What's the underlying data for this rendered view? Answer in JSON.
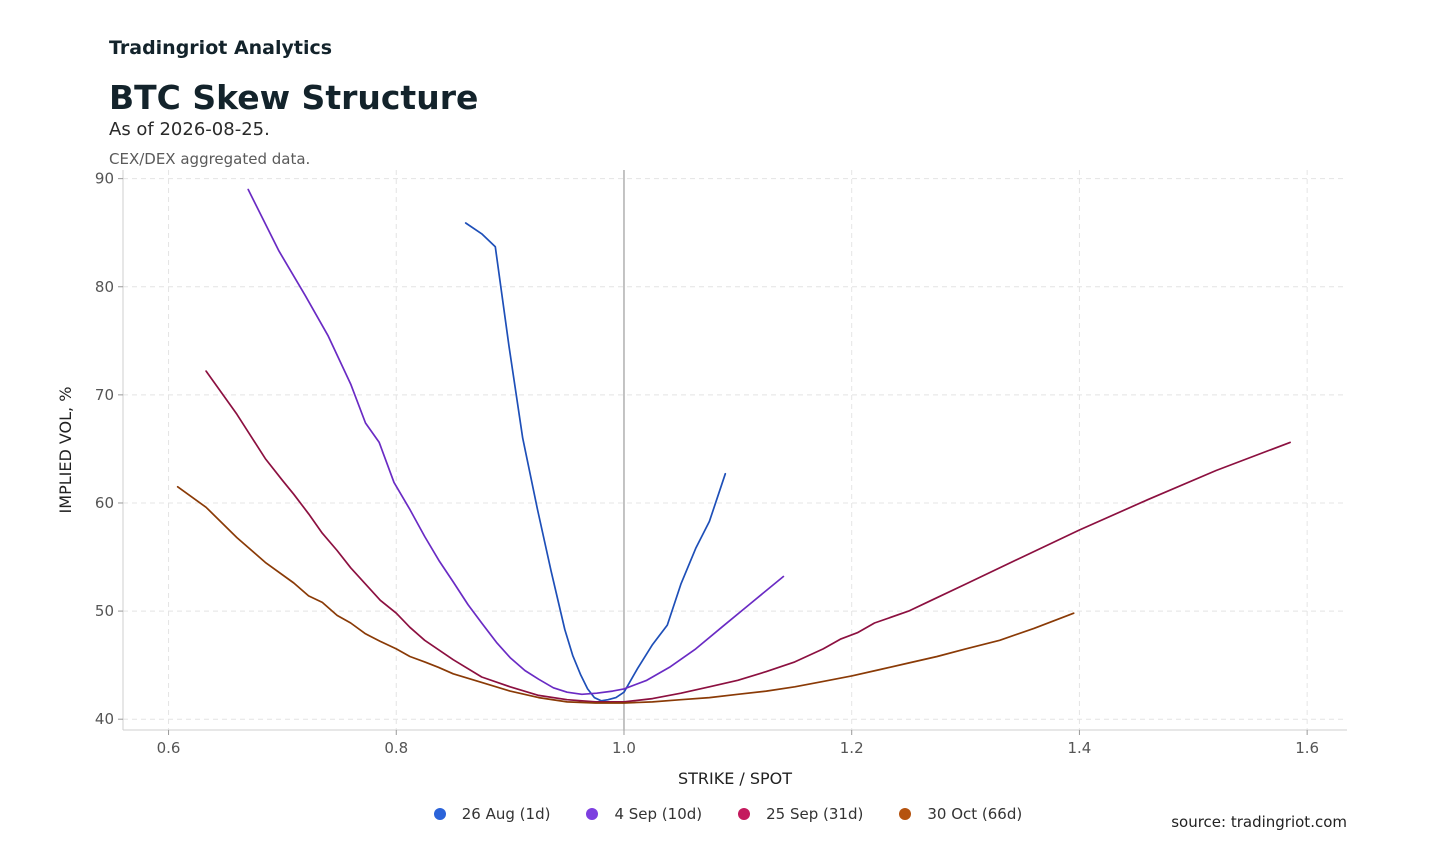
{
  "header": {
    "brand": "Tradingriot Analytics",
    "title": "BTC Skew Structure",
    "subtitle": "As of 2026-08-25.",
    "note": "CEX/DEX aggregated data."
  },
  "footer": {
    "source": "source: tradingriot.com"
  },
  "chart_data": {
    "type": "line",
    "title": "BTC Skew Structure",
    "xlabel": "STRIKE / SPOT",
    "ylabel": "IMPLIED VOL, %",
    "xlim": [
      0.56,
      1.635
    ],
    "ylim": [
      39,
      90.8
    ],
    "xticks": [
      0.6,
      0.8,
      1.0,
      1.2,
      1.4,
      1.6
    ],
    "xtick_labels": [
      "0.6",
      "0.8",
      "1.0",
      "1.2",
      "1.4",
      "1.6"
    ],
    "yticks": [
      40,
      50,
      60,
      70,
      80,
      90
    ],
    "ytick_labels": [
      "40",
      "50",
      "60",
      "70",
      "80",
      "90"
    ],
    "grid": true,
    "vline_x": 1.0,
    "legend_position": "bottom-center",
    "series": [
      {
        "name": "26 Aug (1d)",
        "color": "#1e4fb8",
        "legend_color": "#2b63d9",
        "x": [
          0.861,
          0.875,
          0.887,
          0.899,
          0.911,
          0.924,
          0.936,
          0.948,
          0.955,
          0.962,
          0.968,
          0.974,
          0.98,
          0.986,
          0.993,
          1.0,
          1.012,
          1.025,
          1.038,
          1.05,
          1.063,
          1.075,
          1.089
        ],
        "y": [
          85.9,
          84.9,
          83.7,
          74.5,
          66.0,
          59.4,
          53.7,
          48.3,
          45.9,
          44.1,
          42.8,
          42.0,
          41.7,
          41.8,
          42.0,
          42.5,
          44.7,
          46.9,
          48.7,
          52.5,
          55.8,
          58.3,
          62.7
        ]
      },
      {
        "name": "4 Sep (10d)",
        "color": "#6a2bc4",
        "legend_color": "#7d3fe0",
        "x": [
          0.67,
          0.697,
          0.72,
          0.74,
          0.76,
          0.773,
          0.785,
          0.798,
          0.812,
          0.825,
          0.838,
          0.85,
          0.863,
          0.875,
          0.888,
          0.9,
          0.913,
          0.925,
          0.938,
          0.95,
          0.963,
          0.976,
          0.99,
          1.0,
          1.02,
          1.04,
          1.063,
          1.087,
          1.11,
          1.14
        ],
        "y": [
          89.0,
          83.3,
          79.2,
          75.5,
          71.0,
          67.4,
          65.6,
          61.9,
          59.4,
          56.9,
          54.6,
          52.7,
          50.6,
          48.9,
          47.1,
          45.7,
          44.5,
          43.7,
          42.9,
          42.5,
          42.3,
          42.4,
          42.6,
          42.8,
          43.6,
          44.8,
          46.5,
          48.6,
          50.6,
          53.2
        ]
      },
      {
        "name": "25 Sep (31d)",
        "color": "#8c1040",
        "legend_color": "#c41a5e",
        "x": [
          0.633,
          0.66,
          0.685,
          0.7,
          0.71,
          0.723,
          0.735,
          0.748,
          0.76,
          0.773,
          0.786,
          0.8,
          0.812,
          0.825,
          0.85,
          0.875,
          0.9,
          0.925,
          0.95,
          0.975,
          1.0,
          1.025,
          1.05,
          1.075,
          1.1,
          1.125,
          1.15,
          1.175,
          1.19,
          1.205,
          1.22,
          1.25,
          1.27,
          1.3,
          1.35,
          1.4,
          1.46,
          1.52,
          1.585
        ],
        "y": [
          72.2,
          68.2,
          64.1,
          62.1,
          60.8,
          59.0,
          57.2,
          55.6,
          54.0,
          52.5,
          51.0,
          49.8,
          48.5,
          47.3,
          45.5,
          43.9,
          43.0,
          42.2,
          41.8,
          41.6,
          41.6,
          41.9,
          42.4,
          43.0,
          43.6,
          44.4,
          45.3,
          46.5,
          47.4,
          48.0,
          48.9,
          50.0,
          51.0,
          52.5,
          55.0,
          57.5,
          60.3,
          63.0,
          65.6
        ]
      },
      {
        "name": "30 Oct (66d)",
        "color": "#8a3a06",
        "legend_color": "#b5530f",
        "x": [
          0.608,
          0.633,
          0.66,
          0.685,
          0.71,
          0.723,
          0.735,
          0.748,
          0.76,
          0.773,
          0.786,
          0.8,
          0.812,
          0.825,
          0.837,
          0.85,
          0.875,
          0.9,
          0.925,
          0.95,
          0.975,
          1.0,
          1.025,
          1.05,
          1.075,
          1.1,
          1.125,
          1.15,
          1.175,
          1.2,
          1.225,
          1.25,
          1.275,
          1.3,
          1.33,
          1.36,
          1.395
        ],
        "y": [
          61.5,
          59.6,
          56.8,
          54.5,
          52.6,
          51.4,
          50.8,
          49.6,
          48.9,
          47.9,
          47.2,
          46.5,
          45.8,
          45.3,
          44.8,
          44.2,
          43.4,
          42.6,
          42.0,
          41.6,
          41.5,
          41.5,
          41.6,
          41.8,
          42.0,
          42.3,
          42.6,
          43.0,
          43.5,
          44.0,
          44.6,
          45.2,
          45.8,
          46.5,
          47.3,
          48.4,
          49.8
        ]
      }
    ]
  }
}
